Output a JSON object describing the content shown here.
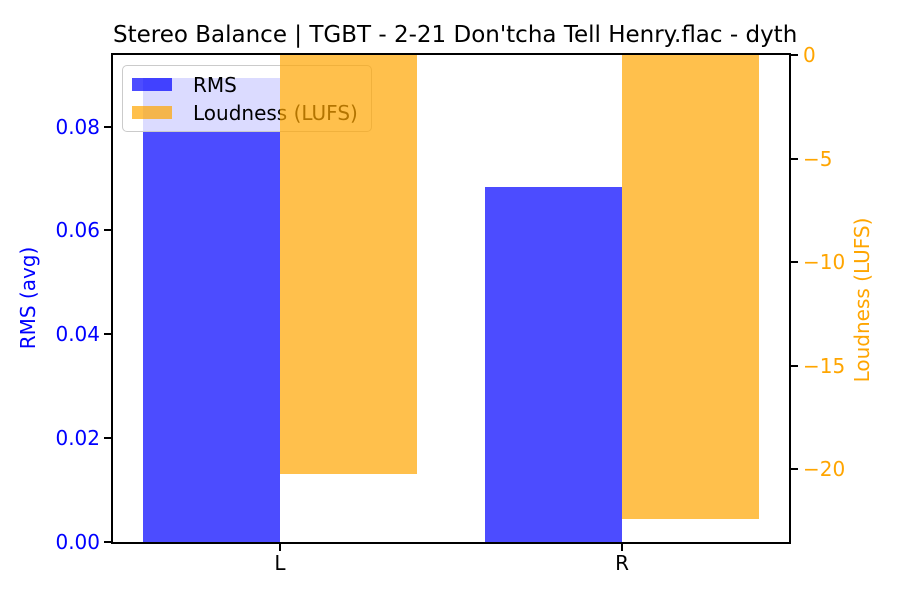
{
  "chart_data": {
    "type": "bar",
    "title": "Stereo Balance | TGBT - 2-21 Don'tcha Tell Henry.flac - dyth",
    "categories": [
      "L",
      "R"
    ],
    "series": [
      {
        "name": "RMS",
        "axis": "left",
        "color": "rgba(0,0,255,0.7)",
        "solid_color": "#4d4dff",
        "values": [
          0.0893,
          0.0684
        ]
      },
      {
        "name": "Loudness (LUFS)",
        "axis": "right",
        "color": "rgba(255,165,0,0.7)",
        "solid_color": "#ffc04d",
        "values": [
          -20.2,
          -22.4
        ]
      }
    ],
    "left_axis": {
      "label": "RMS (avg)",
      "color": "#0000ff",
      "lim": [
        0,
        0.0938
      ],
      "ticks": [
        0,
        0.02,
        0.04,
        0.06,
        0.08
      ],
      "tick_labels": [
        "0.00",
        "0.02",
        "0.04",
        "0.06",
        "0.08"
      ]
    },
    "right_axis": {
      "label": "Loudness (LUFS)",
      "color": "#ffa500",
      "lim": [
        -23.5,
        0
      ],
      "ticks": [
        0,
        -5,
        -10,
        -15,
        -20
      ],
      "tick_labels": [
        "0",
        "−5",
        "−10",
        "−15",
        "−20"
      ]
    },
    "x_axis": {
      "tick_labels": [
        "L",
        "R"
      ]
    },
    "legend": {
      "position": "upper-left",
      "entries": [
        "RMS",
        "Loudness (LUFS)"
      ]
    },
    "bar_width_fraction": 0.2026,
    "grid": false,
    "background": "#ffffff"
  }
}
